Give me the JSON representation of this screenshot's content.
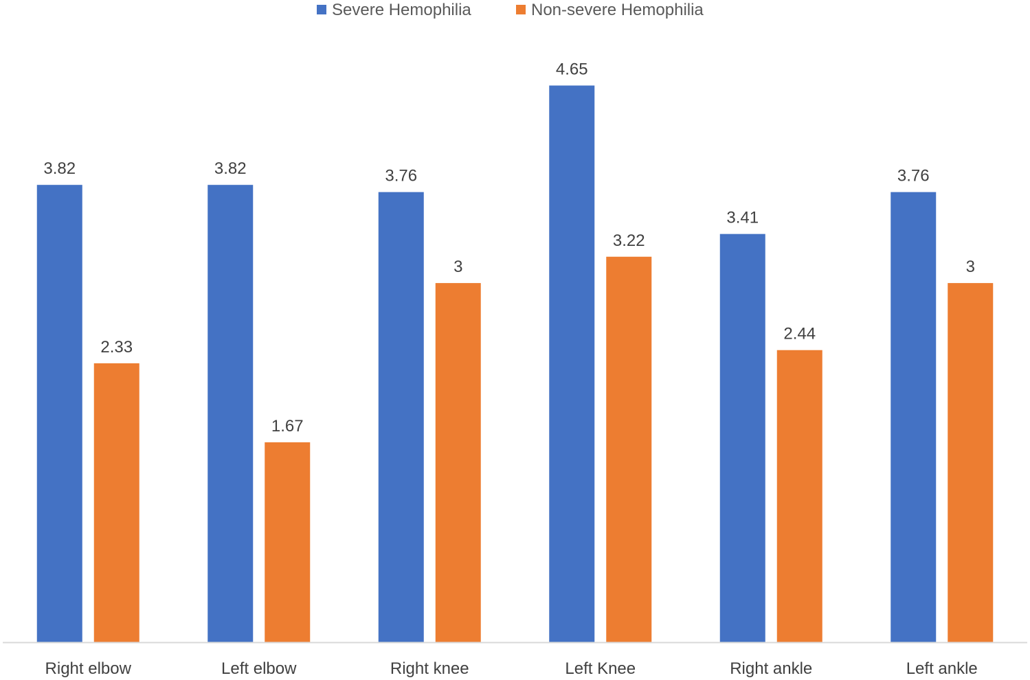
{
  "chart_data": {
    "type": "bar",
    "title": "",
    "xlabel": "",
    "ylabel": "",
    "ylim": [
      0,
      5
    ],
    "grid": false,
    "legend_position": "top-center",
    "categories": [
      "Right elbow",
      "Left elbow",
      "Right knee",
      "Left Knee",
      "Right ankle",
      "Left ankle"
    ],
    "series": [
      {
        "name": "Severe Hemophilia",
        "color": "#4472C4",
        "values": [
          3.82,
          3.82,
          3.76,
          4.65,
          3.41,
          3.76
        ],
        "labels": [
          "3.82",
          "3.82",
          "3.76",
          "4.65",
          "3.41",
          "3.76"
        ]
      },
      {
        "name": "Non-severe Hemophilia",
        "color": "#ED7D31",
        "values": [
          2.33,
          1.67,
          3,
          3.22,
          2.44,
          3
        ],
        "labels": [
          "2.33",
          "1.67",
          "3",
          "3.22",
          "2.44",
          "3"
        ]
      }
    ],
    "axis_color": "#D9D9D9"
  }
}
